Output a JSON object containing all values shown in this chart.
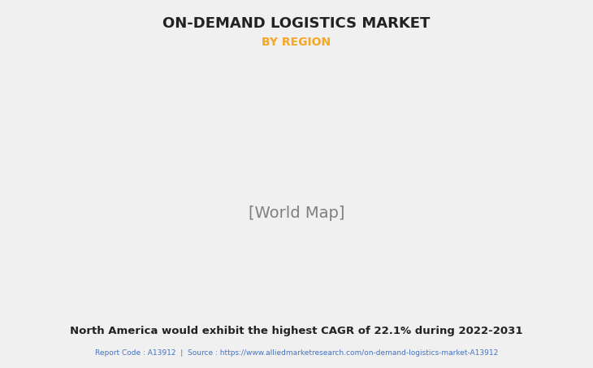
{
  "title": "ON-DEMAND LOGISTICS MARKET",
  "subtitle": "BY REGION",
  "subtitle_color": "#F5A623",
  "title_color": "#222222",
  "background_color": "#F0F0F0",
  "map_land_color": "#8FBC8F",
  "map_highlight_color": "#FFFFFF",
  "map_border_color": "#A8C8E8",
  "map_shadow_color": "#A0A0A0",
  "bottom_text": "North America would exhibit the highest CAGR of 22.1% during 2022-2031",
  "bottom_text_color": "#222222",
  "footer_text": "Report Code : A13912  |  Source : https://www.alliedmarketresearch.com/on-demand-logistics-market-A13912",
  "footer_color": "#4472C4",
  "figsize": [
    7.3,
    4.53
  ],
  "dpi": 100
}
